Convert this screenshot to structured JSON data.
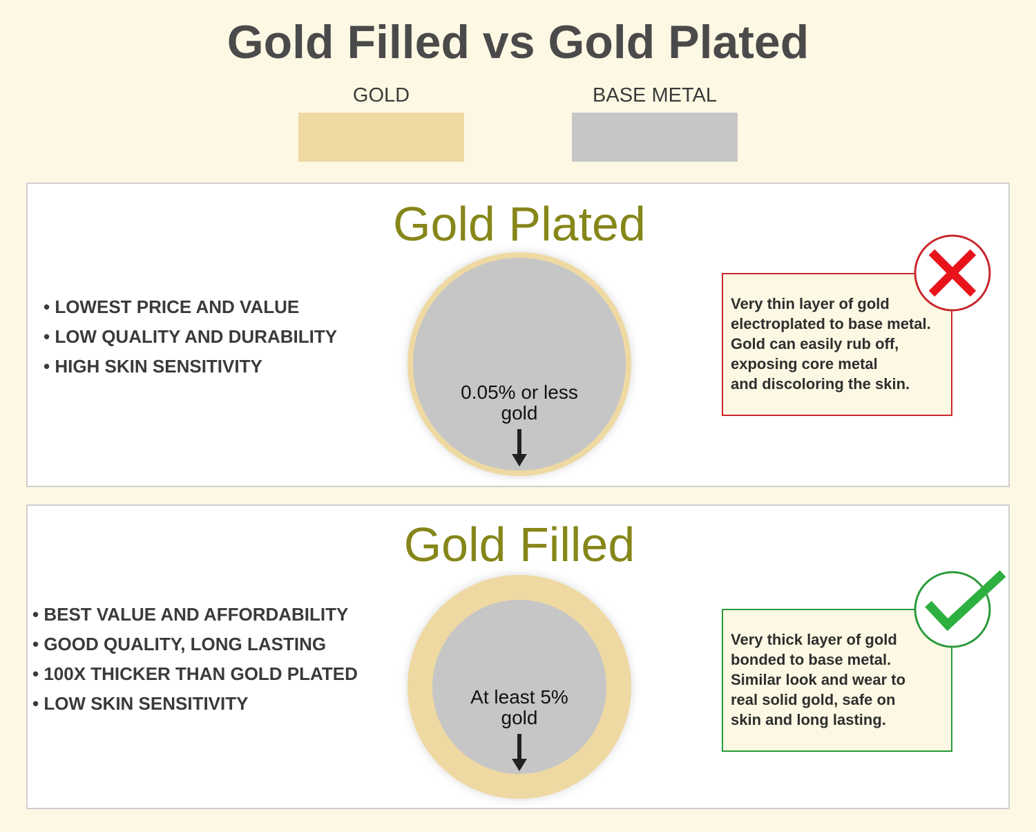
{
  "title": "Gold Filled vs Gold Plated",
  "legend": [
    {
      "label": "GOLD",
      "color": "#efd9a2"
    },
    {
      "label": "BASE METAL",
      "color": "#c6c6c6"
    }
  ],
  "colors": {
    "background": "#fdf8e4",
    "title_olive": "#86861a",
    "bad": "#c8262c",
    "good": "#2a9a3a"
  },
  "plated": {
    "title": "Gold Plated",
    "bullets": [
      "• LOWEST PRICE AND VALUE",
      "• LOW QUALITY AND DURABILITY",
      "• HIGH SKIN SENSITIVITY"
    ],
    "circle_label_1": "0.05% or less",
    "circle_label_2": "gold",
    "description": [
      "Very thin layer of gold",
      "electroplated to base metal.",
      "Gold can easily rub off,",
      "exposing core metal",
      "and discoloring the skin."
    ],
    "icon": "x-mark-icon"
  },
  "filled": {
    "title": "Gold Filled",
    "bullets": [
      "• BEST VALUE AND AFFORDABILITY",
      "• GOOD QUALITY, LONG LASTING",
      "• 100X THICKER THAN GOLD PLATED",
      "• LOW SKIN SENSITIVITY"
    ],
    "circle_label_1": "At least 5%",
    "circle_label_2": "gold",
    "description": [
      "Very thick layer of gold",
      "bonded to base metal.",
      "Similar look and wear to",
      "real solid gold, safe on",
      "skin and long lasting."
    ],
    "icon": "checkmark-icon"
  }
}
